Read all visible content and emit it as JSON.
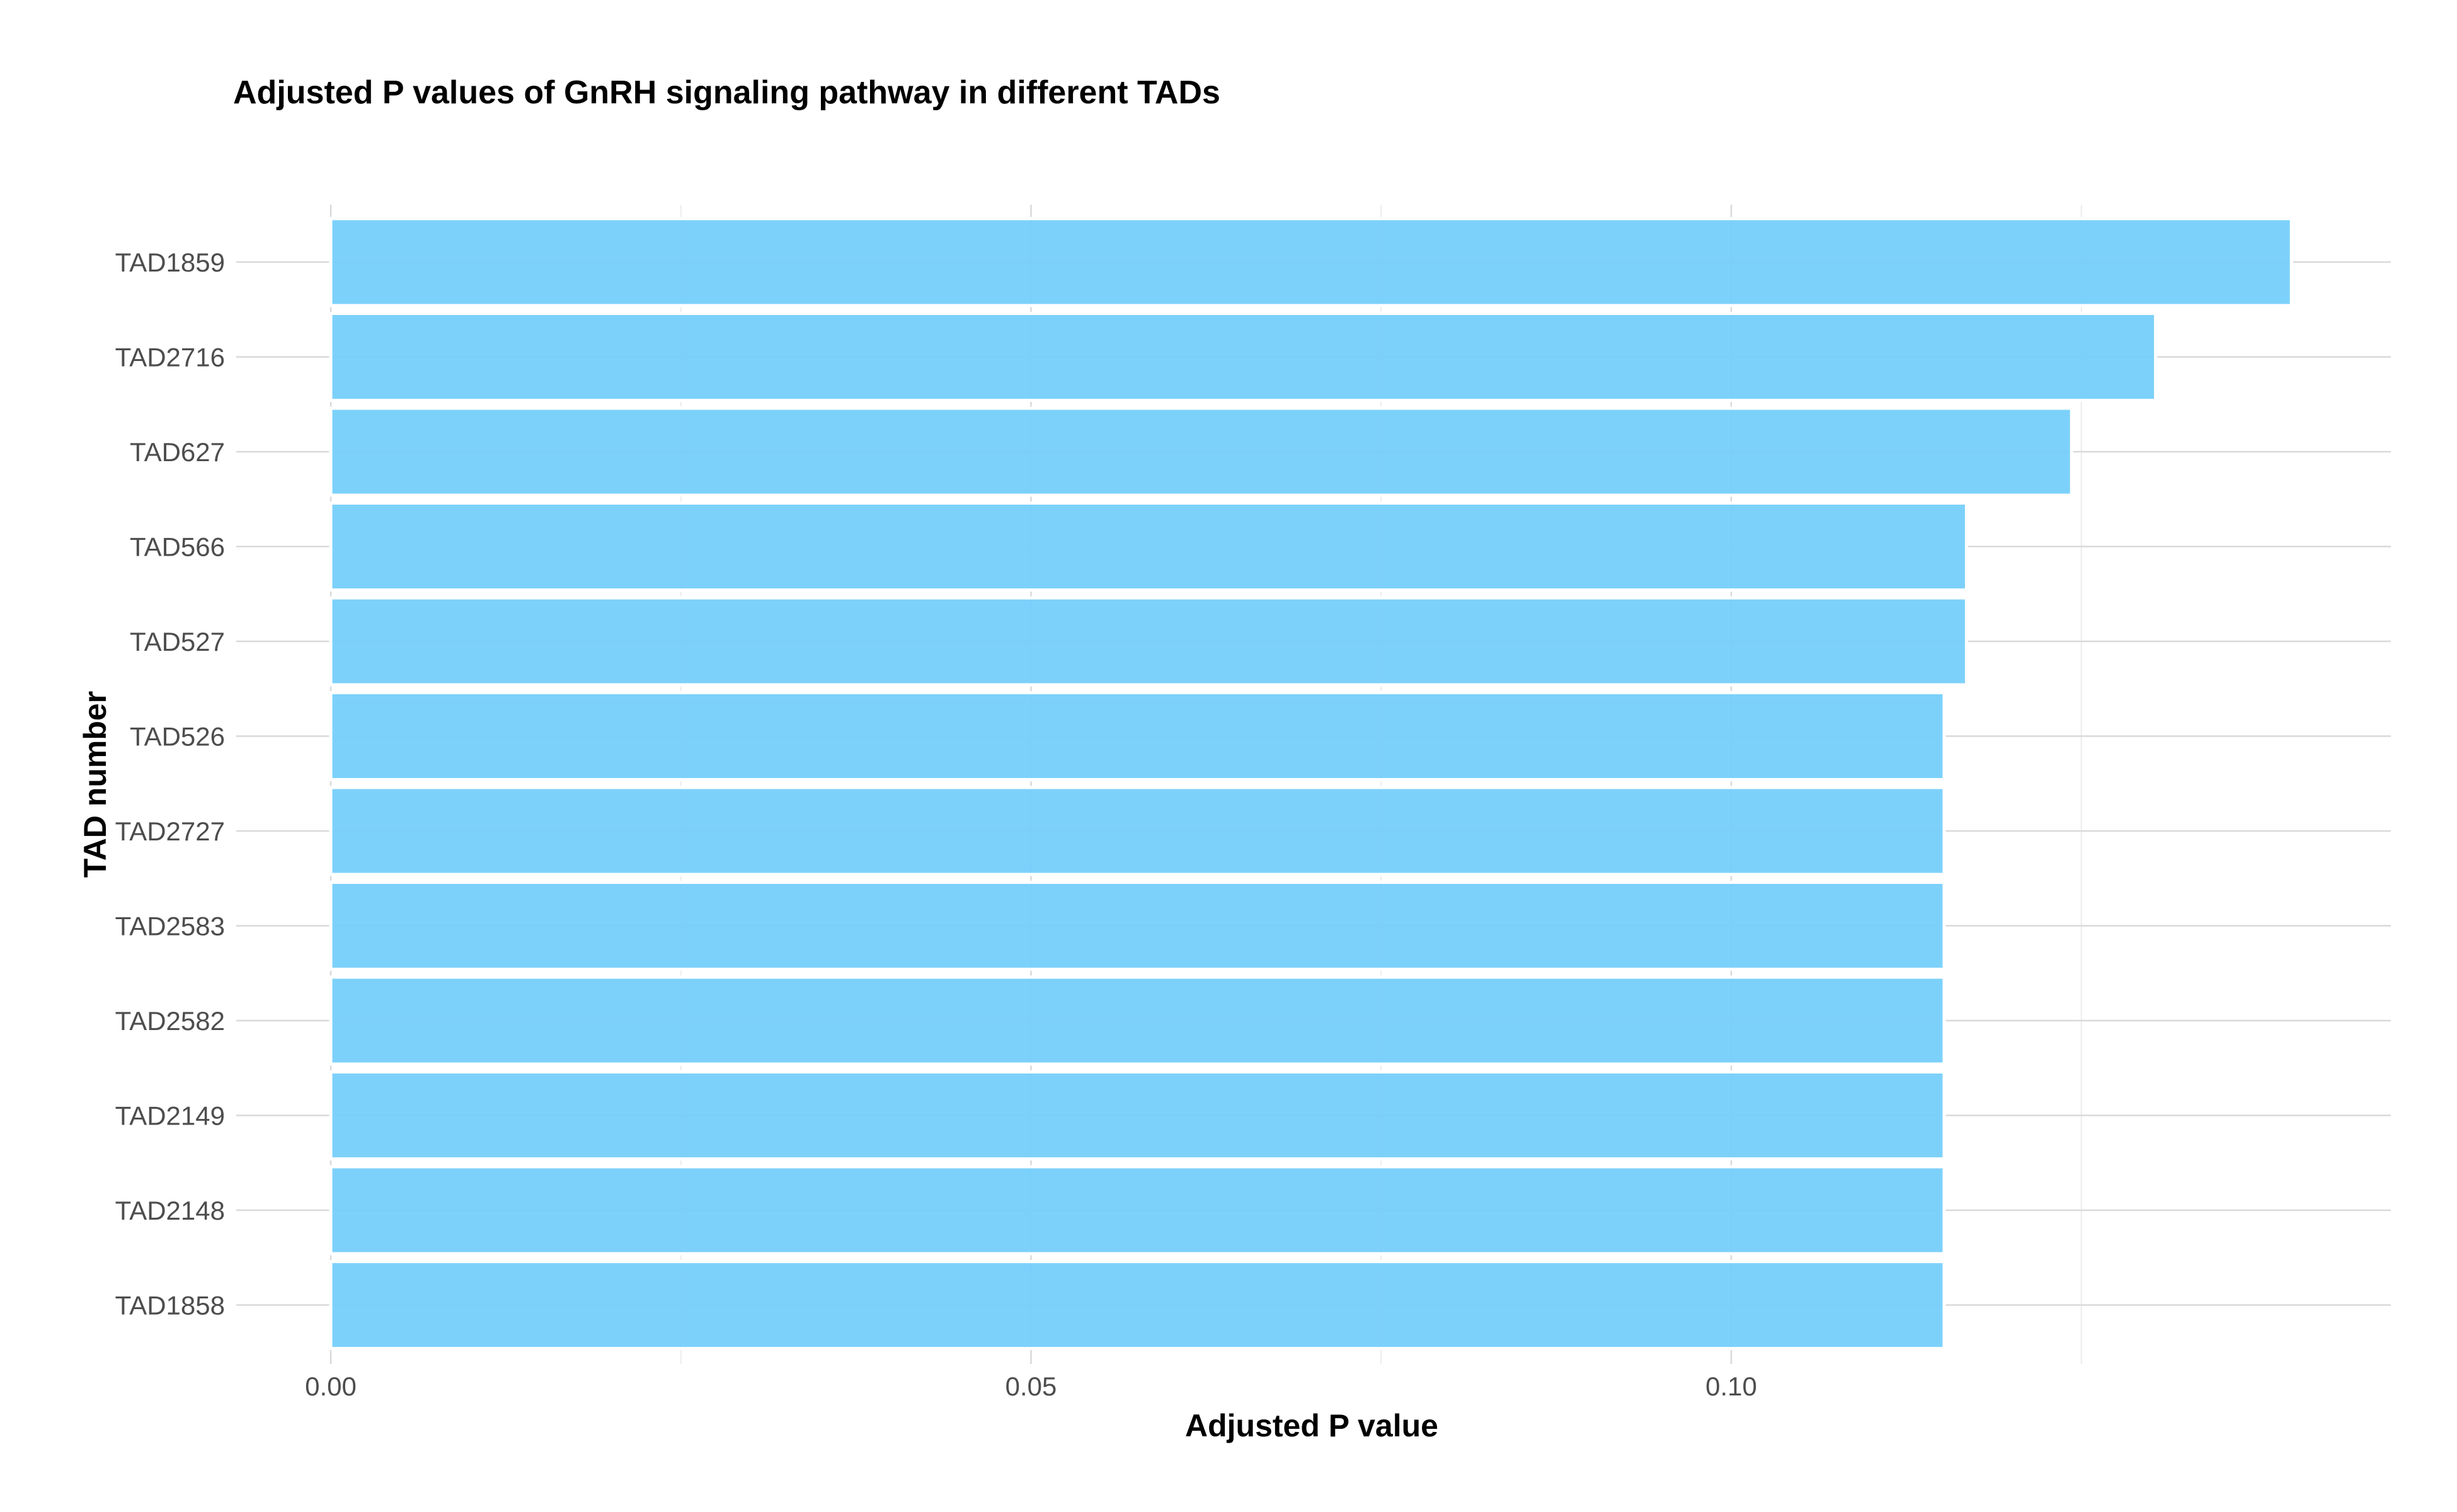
{
  "chart_data": {
    "type": "bar",
    "orientation": "horizontal",
    "title": "Adjusted P values of GnRH signaling pathway in different TADs",
    "xlabel": "Adjusted P value",
    "ylabel": "TAD number",
    "categories": [
      "TAD1859",
      "TAD2716",
      "TAD627",
      "TAD566",
      "TAD527",
      "TAD526",
      "TAD2727",
      "TAD2583",
      "TAD2582",
      "TAD2149",
      "TAD2148",
      "TAD1858"
    ],
    "values": [
      0.14,
      0.1303,
      0.1243,
      0.1168,
      0.1168,
      0.1152,
      0.1152,
      0.1152,
      0.1152,
      0.1152,
      0.1152,
      0.1152
    ],
    "x_ticks": [
      "0.00",
      "0.05",
      "0.10"
    ],
    "x_tick_values": [
      0,
      0.05,
      0.1
    ],
    "x_minor_tick_values": [
      0.025,
      0.075,
      0.125
    ],
    "xlim": [
      0,
      0.147
    ],
    "grid": true,
    "legend": "none",
    "colors": {
      "bar_fill": "#75cffb",
      "bar_outline": "#ffffff",
      "grid_major": "#d9d9d9",
      "grid_minor": "#ececec"
    }
  }
}
